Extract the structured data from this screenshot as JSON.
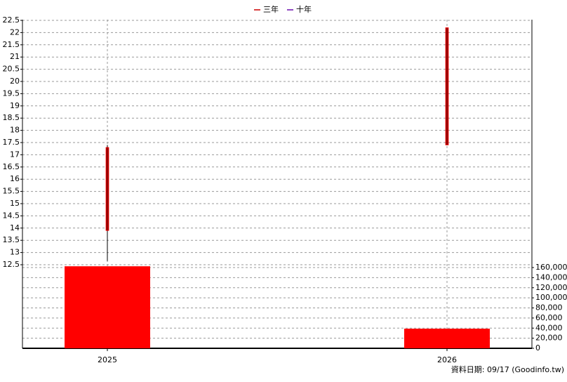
{
  "chart_data": {
    "type": "candlestick",
    "legend": [
      {
        "name": "三年",
        "color": "#cc0000"
      },
      {
        "name": "十年",
        "color": "#6a0dad"
      }
    ],
    "categories": [
      "2025",
      "2026"
    ],
    "open": [
      13.9,
      17.4
    ],
    "close": [
      17.3,
      22.2
    ],
    "high": [
      17.4,
      22.2
    ],
    "low": [
      12.65,
      17.4
    ],
    "candle_color": "#990000",
    "candle_edge": "#ff0000",
    "volume": [
      162500,
      38900
    ],
    "volume_color": "#ff0000",
    "ylim": [
      12.5,
      22.5
    ],
    "yticks": [
      12.5,
      13,
      13.5,
      14,
      14.5,
      15,
      15.5,
      16,
      16.5,
      17,
      17.5,
      18,
      18.5,
      19,
      19.5,
      20,
      20.5,
      21,
      21.5,
      22,
      22.5
    ],
    "y2lim": [
      0,
      160000
    ],
    "y2ticks": [
      0,
      {
        "value": 20000,
        "label": "20,000"
      },
      {
        "value": 40000,
        "label": "40,000"
      },
      {
        "value": 60000,
        "label": "60,000"
      },
      {
        "value": 80000,
        "label": "80,000"
      },
      {
        "value": 100000,
        "label": "100,000"
      },
      {
        "value": 120000,
        "label": "120,000"
      },
      {
        "value": 140000,
        "label": "140,000"
      },
      {
        "value": 160000,
        "label": "160,000"
      }
    ],
    "grid": true,
    "source": "資料日期: 09/17  (Goodinfo.tw)"
  }
}
